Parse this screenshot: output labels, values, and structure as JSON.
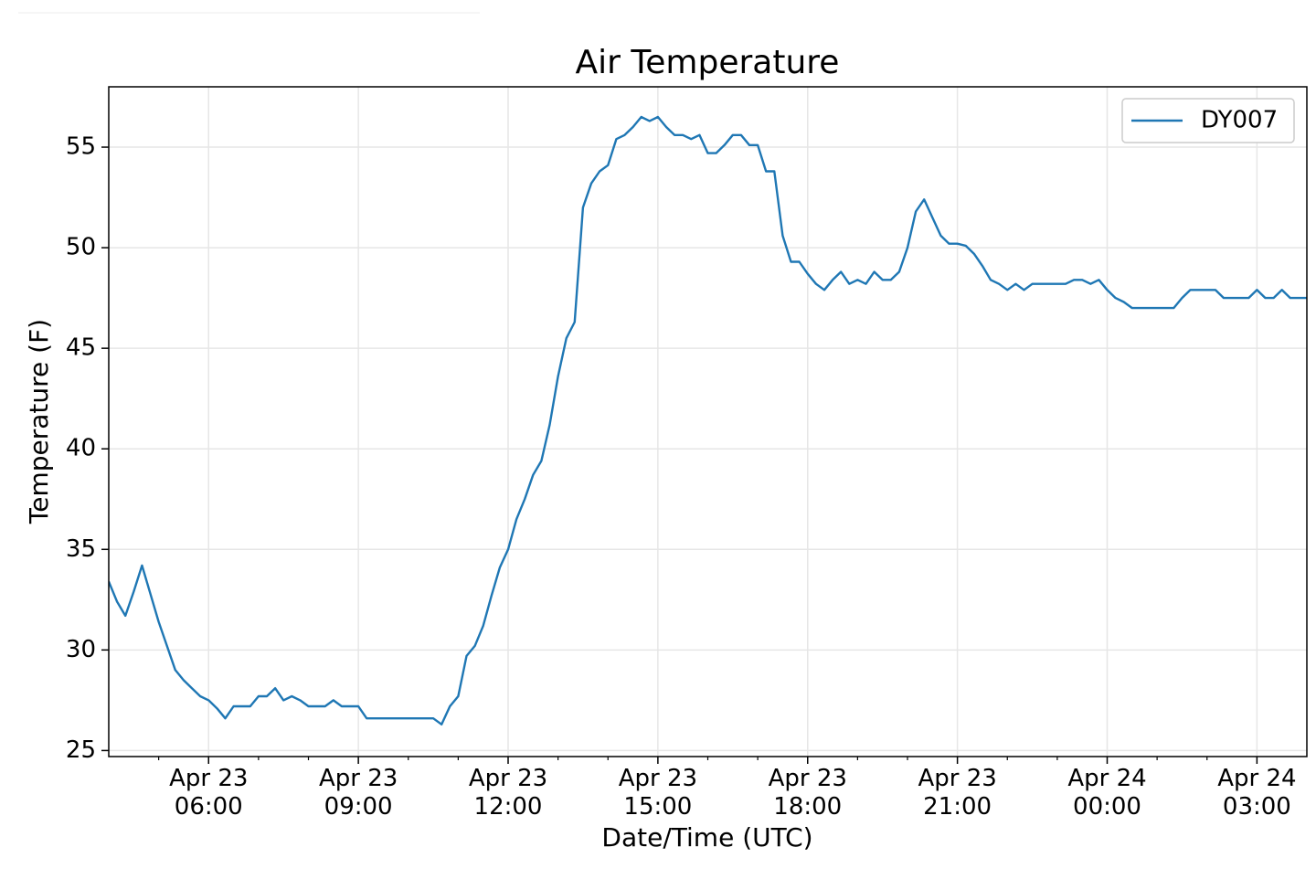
{
  "chart_data": {
    "type": "line",
    "title": "Air Temperature",
    "x_label": "Date/Time (UTC)",
    "y_label": "Temperature (F)",
    "x": [
      "Apr 23 04:00",
      "Apr 23 04:10",
      "Apr 23 04:20",
      "Apr 23 04:30",
      "Apr 23 04:40",
      "Apr 23 04:50",
      "Apr 23 05:00",
      "Apr 23 05:10",
      "Apr 23 05:20",
      "Apr 23 05:30",
      "Apr 23 05:40",
      "Apr 23 05:50",
      "Apr 23 06:00",
      "Apr 23 06:10",
      "Apr 23 06:20",
      "Apr 23 06:30",
      "Apr 23 06:40",
      "Apr 23 06:50",
      "Apr 23 07:00",
      "Apr 23 07:10",
      "Apr 23 07:20",
      "Apr 23 07:30",
      "Apr 23 07:40",
      "Apr 23 07:50",
      "Apr 23 08:00",
      "Apr 23 08:10",
      "Apr 23 08:20",
      "Apr 23 08:30",
      "Apr 23 08:40",
      "Apr 23 08:50",
      "Apr 23 09:00",
      "Apr 23 09:10",
      "Apr 23 09:20",
      "Apr 23 09:30",
      "Apr 23 09:40",
      "Apr 23 09:50",
      "Apr 23 10:00",
      "Apr 23 10:10",
      "Apr 23 10:20",
      "Apr 23 10:30",
      "Apr 23 10:40",
      "Apr 23 10:50",
      "Apr 23 11:00",
      "Apr 23 11:10",
      "Apr 23 11:20",
      "Apr 23 11:30",
      "Apr 23 11:40",
      "Apr 23 11:50",
      "Apr 23 12:00",
      "Apr 23 12:10",
      "Apr 23 12:20",
      "Apr 23 12:30",
      "Apr 23 12:40",
      "Apr 23 12:50",
      "Apr 23 13:00",
      "Apr 23 13:10",
      "Apr 23 13:20",
      "Apr 23 13:30",
      "Apr 23 13:40",
      "Apr 23 13:50",
      "Apr 23 14:00",
      "Apr 23 14:10",
      "Apr 23 14:20",
      "Apr 23 14:30",
      "Apr 23 14:40",
      "Apr 23 14:50",
      "Apr 23 15:00",
      "Apr 23 15:10",
      "Apr 23 15:20",
      "Apr 23 15:30",
      "Apr 23 15:40",
      "Apr 23 15:50",
      "Apr 23 16:00",
      "Apr 23 16:10",
      "Apr 23 16:20",
      "Apr 23 16:30",
      "Apr 23 16:40",
      "Apr 23 16:50",
      "Apr 23 17:00",
      "Apr 23 17:10",
      "Apr 23 17:20",
      "Apr 23 17:30",
      "Apr 23 17:40",
      "Apr 23 17:50",
      "Apr 23 18:00",
      "Apr 23 18:10",
      "Apr 23 18:20",
      "Apr 23 18:30",
      "Apr 23 18:40",
      "Apr 23 18:50",
      "Apr 23 19:00",
      "Apr 23 19:10",
      "Apr 23 19:20",
      "Apr 23 19:30",
      "Apr 23 19:40",
      "Apr 23 19:50",
      "Apr 23 20:00",
      "Apr 23 20:10",
      "Apr 23 20:20",
      "Apr 23 20:30",
      "Apr 23 20:40",
      "Apr 23 20:50",
      "Apr 23 21:00",
      "Apr 23 21:10",
      "Apr 23 21:20",
      "Apr 23 21:30",
      "Apr 23 21:40",
      "Apr 23 21:50",
      "Apr 23 22:00",
      "Apr 23 22:10",
      "Apr 23 22:20",
      "Apr 23 22:30",
      "Apr 23 22:40",
      "Apr 23 22:50",
      "Apr 23 23:00",
      "Apr 23 23:10",
      "Apr 23 23:20",
      "Apr 23 23:30",
      "Apr 23 23:40",
      "Apr 23 23:50",
      "Apr 24 00:00",
      "Apr 24 00:10",
      "Apr 24 00:20",
      "Apr 24 00:30",
      "Apr 24 00:40",
      "Apr 24 00:50",
      "Apr 24 01:00",
      "Apr 24 01:10",
      "Apr 24 01:20",
      "Apr 24 01:30",
      "Apr 24 01:40",
      "Apr 24 01:50",
      "Apr 24 02:00",
      "Apr 24 02:10",
      "Apr 24 02:20",
      "Apr 24 02:30",
      "Apr 24 02:40",
      "Apr 24 02:50",
      "Apr 24 03:00",
      "Apr 24 03:10",
      "Apr 24 03:20",
      "Apr 24 03:30",
      "Apr 24 03:40",
      "Apr 24 03:50",
      "Apr 24 04:00"
    ],
    "series": [
      {
        "name": "DY007",
        "color": "#1f77b4",
        "values": [
          33.4,
          32.4,
          31.7,
          32.9,
          34.2,
          32.8,
          31.4,
          30.2,
          29.0,
          28.5,
          28.1,
          27.7,
          27.5,
          27.1,
          26.6,
          27.2,
          27.2,
          27.2,
          27.7,
          27.7,
          28.1,
          27.5,
          27.7,
          27.5,
          27.2,
          27.2,
          27.2,
          27.5,
          27.2,
          27.2,
          27.2,
          26.6,
          26.6,
          26.6,
          26.6,
          26.6,
          26.6,
          26.6,
          26.6,
          26.6,
          26.3,
          27.2,
          27.7,
          29.7,
          30.2,
          31.2,
          32.7,
          34.1,
          35.0,
          36.5,
          37.5,
          38.7,
          39.4,
          41.2,
          43.6,
          45.5,
          46.3,
          52.0,
          53.2,
          53.8,
          54.1,
          55.4,
          55.6,
          56.0,
          56.5,
          56.3,
          56.5,
          56.0,
          55.6,
          55.6,
          55.4,
          55.6,
          54.7,
          54.7,
          55.1,
          55.6,
          55.6,
          55.1,
          55.1,
          53.8,
          53.8,
          50.6,
          49.3,
          49.3,
          48.7,
          48.2,
          47.9,
          48.4,
          48.8,
          48.2,
          48.4,
          48.2,
          48.8,
          48.4,
          48.4,
          48.8,
          50.0,
          51.8,
          52.4,
          51.5,
          50.6,
          50.2,
          50.2,
          50.1,
          49.7,
          49.1,
          48.4,
          48.2,
          47.9,
          48.2,
          47.9,
          48.2,
          48.2,
          48.2,
          48.2,
          48.2,
          48.4,
          48.4,
          48.2,
          48.4,
          47.9,
          47.5,
          47.3,
          47.0,
          47.0,
          47.0,
          47.0,
          47.0,
          47.0,
          47.5,
          47.9,
          47.9,
          47.9,
          47.9,
          47.5,
          47.5,
          47.5,
          47.5,
          47.9,
          47.5,
          47.5,
          47.9,
          47.5,
          47.5,
          47.5
        ]
      }
    ],
    "xlim": [
      "Apr 23 04:00",
      "Apr 24 04:00"
    ],
    "xticks": [
      {
        "value": "Apr 23 06:00",
        "label": "Apr 23\n06:00"
      },
      {
        "value": "Apr 23 09:00",
        "label": "Apr 23\n09:00"
      },
      {
        "value": "Apr 23 12:00",
        "label": "Apr 23\n12:00"
      },
      {
        "value": "Apr 23 15:00",
        "label": "Apr 23\n15:00"
      },
      {
        "value": "Apr 23 18:00",
        "label": "Apr 23\n18:00"
      },
      {
        "value": "Apr 23 21:00",
        "label": "Apr 23\n21:00"
      },
      {
        "value": "Apr 24 00:00",
        "label": "Apr 24\n00:00"
      },
      {
        "value": "Apr 24 03:00",
        "label": "Apr 24\n03:00"
      }
    ],
    "xminorticks": [
      "Apr 23 05:00",
      "Apr 23 07:00",
      "Apr 23 08:00",
      "Apr 23 10:00",
      "Apr 23 11:00",
      "Apr 23 13:00",
      "Apr 23 14:00",
      "Apr 23 16:00",
      "Apr 23 17:00",
      "Apr 23 19:00",
      "Apr 23 20:00",
      "Apr 23 22:00",
      "Apr 23 23:00",
      "Apr 24 01:00",
      "Apr 24 02:00"
    ],
    "ylim": [
      24.7,
      58
    ],
    "yticks": [
      25,
      30,
      35,
      40,
      45,
      50,
      55
    ],
    "grid": true,
    "legend": "upper right"
  }
}
